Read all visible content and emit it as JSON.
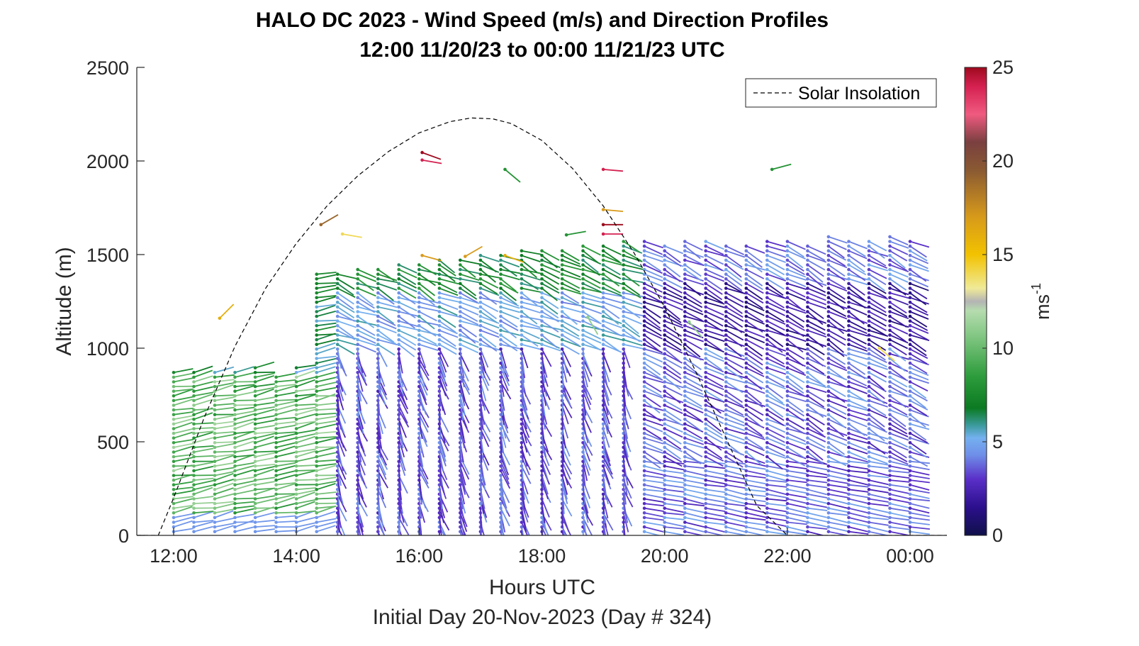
{
  "chart_data": {
    "type": "scatter",
    "subtype": "wind-barb profile",
    "title": "HALO DC 2023 - Wind Speed (m/s) and Direction Profiles",
    "subtitle": "12:00 11/20/23 to 00:00 11/21/23  UTC",
    "xlabel": "Hours UTC",
    "xlabel2": "Initial Day 20-Nov-2023 (Day # 324)",
    "ylabel": "Altitude (m)",
    "xlim": [
      11.4,
      24.6
    ],
    "ylim": [
      0,
      2500
    ],
    "x_tick_values": [
      12,
      14,
      16,
      18,
      20,
      22,
      24
    ],
    "x_tick_labels": [
      "12:00",
      "14:00",
      "16:00",
      "18:00",
      "20:00",
      "22:00",
      "00:00"
    ],
    "y_ticks": [
      0,
      500,
      1000,
      1500,
      2000,
      2500
    ],
    "colorbar": {
      "label_base": "ms",
      "label_exp": "-1",
      "range": [
        0,
        25
      ],
      "ticks": [
        0,
        5,
        10,
        15,
        20,
        25
      ],
      "stops": [
        {
          "v": 0,
          "c": "#10104a"
        },
        {
          "v": 1.5,
          "c": "#2b0f8c"
        },
        {
          "v": 3,
          "c": "#5a2fc8"
        },
        {
          "v": 4.3,
          "c": "#6f8fe8"
        },
        {
          "v": 5.2,
          "c": "#74b0f0"
        },
        {
          "v": 5.9,
          "c": "#3a9a9a"
        },
        {
          "v": 6.8,
          "c": "#0b7a22"
        },
        {
          "v": 8.5,
          "c": "#2d9c3c"
        },
        {
          "v": 10.5,
          "c": "#7cc47e"
        },
        {
          "v": 12,
          "c": "#b5dcae"
        },
        {
          "v": 12.5,
          "c": "#b4b4b4"
        },
        {
          "v": 13.2,
          "c": "#f0ea98"
        },
        {
          "v": 15,
          "c": "#f2c200"
        },
        {
          "v": 17,
          "c": "#d89a1a"
        },
        {
          "v": 19.5,
          "c": "#8a5a32"
        },
        {
          "v": 21,
          "c": "#7a4040"
        },
        {
          "v": 22.5,
          "c": "#f05a80"
        },
        {
          "v": 24,
          "c": "#d42050"
        },
        {
          "v": 25,
          "c": "#9e0a1e"
        }
      ]
    },
    "legend": {
      "entries": [
        "Solar Insolation"
      ],
      "position": "top-right",
      "style": "dashed black line"
    },
    "solar_insolation": {
      "x": [
        11.4,
        11.75,
        12.0,
        12.5,
        13.0,
        13.5,
        14.0,
        14.5,
        15.0,
        15.5,
        16.0,
        16.5,
        16.85,
        17.2,
        17.5,
        18.0,
        18.5,
        19.0,
        19.5,
        20.0,
        20.5,
        21.0,
        21.5,
        22.0,
        22.5,
        23.0,
        23.5,
        24.0,
        24.6
      ],
      "y": [
        0,
        0,
        200,
        630,
        1010,
        1320,
        1560,
        1760,
        1920,
        2050,
        2150,
        2210,
        2230,
        2225,
        2200,
        2110,
        1960,
        1760,
        1510,
        1220,
        880,
        520,
        160,
        0,
        0,
        0,
        0,
        0,
        0
      ]
    },
    "profile_times": [
      12.0,
      12.33,
      12.67,
      13.0,
      13.33,
      13.67,
      14.0,
      14.33,
      14.67,
      15.0,
      15.33,
      15.67,
      16.0,
      16.33,
      16.67,
      17.0,
      17.33,
      17.67,
      18.0,
      18.33,
      18.67,
      19.0,
      19.33,
      19.67,
      20.0,
      20.33,
      20.67,
      21.0,
      21.33,
      21.67,
      22.0,
      22.33,
      22.67,
      23.0,
      23.33,
      23.67,
      24.0
    ],
    "isolated_barbs": [
      {
        "x": 12.75,
        "y": 1160,
        "speed": 16,
        "dir": 225
      },
      {
        "x": 14.4,
        "y": 1660,
        "speed": 19,
        "dir": 240
      },
      {
        "x": 14.75,
        "y": 1610,
        "speed": 14,
        "dir": 280
      },
      {
        "x": 16.05,
        "y": 2045,
        "speed": 25,
        "dir": 290
      },
      {
        "x": 16.05,
        "y": 2005,
        "speed": 24,
        "dir": 280
      },
      {
        "x": 16.05,
        "y": 1495,
        "speed": 17,
        "dir": 285
      },
      {
        "x": 16.75,
        "y": 1490,
        "speed": 17,
        "dir": 240
      },
      {
        "x": 17.4,
        "y": 1955,
        "speed": 8,
        "dir": 310
      },
      {
        "x": 17.4,
        "y": 1495,
        "speed": 16,
        "dir": 290
      },
      {
        "x": 18.4,
        "y": 1605,
        "speed": 8,
        "dir": 260
      },
      {
        "x": 18.75,
        "y": 1165,
        "speed": 11,
        "dir": 330
      },
      {
        "x": 19.0,
        "y": 1955,
        "speed": 24,
        "dir": 275
      },
      {
        "x": 19.0,
        "y": 1740,
        "speed": 17,
        "dir": 275
      },
      {
        "x": 19.0,
        "y": 1660,
        "speed": 25,
        "dir": 270
      },
      {
        "x": 19.0,
        "y": 1610,
        "speed": 24,
        "dir": 270
      },
      {
        "x": 20.4,
        "y": 1140,
        "speed": 11,
        "dir": 320
      },
      {
        "x": 21.75,
        "y": 1955,
        "speed": 8,
        "dir": 255
      },
      {
        "x": 23.5,
        "y": 1000,
        "speed": 14,
        "dir": 310
      }
    ]
  }
}
